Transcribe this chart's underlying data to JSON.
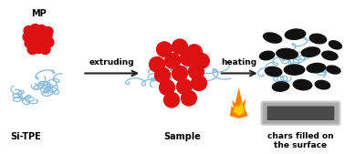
{
  "bg_color": "#ffffff",
  "mp_label": "MP",
  "sitpe_label": "Si-TPE",
  "sample_label": "Sample",
  "chars_label": "chars filled on\nthe surface",
  "extruding_label": "extruding",
  "heating_label": "heating",
  "mp_color": "#dd1111",
  "sitpe_line_color": "#88bbdd",
  "char_color": "#111111",
  "arrow_color": "#222222",
  "label_fontsize": 7.0,
  "arrow_label_fontsize": 6.5,
  "figsize": [
    3.78,
    1.69
  ],
  "dpi": 100
}
